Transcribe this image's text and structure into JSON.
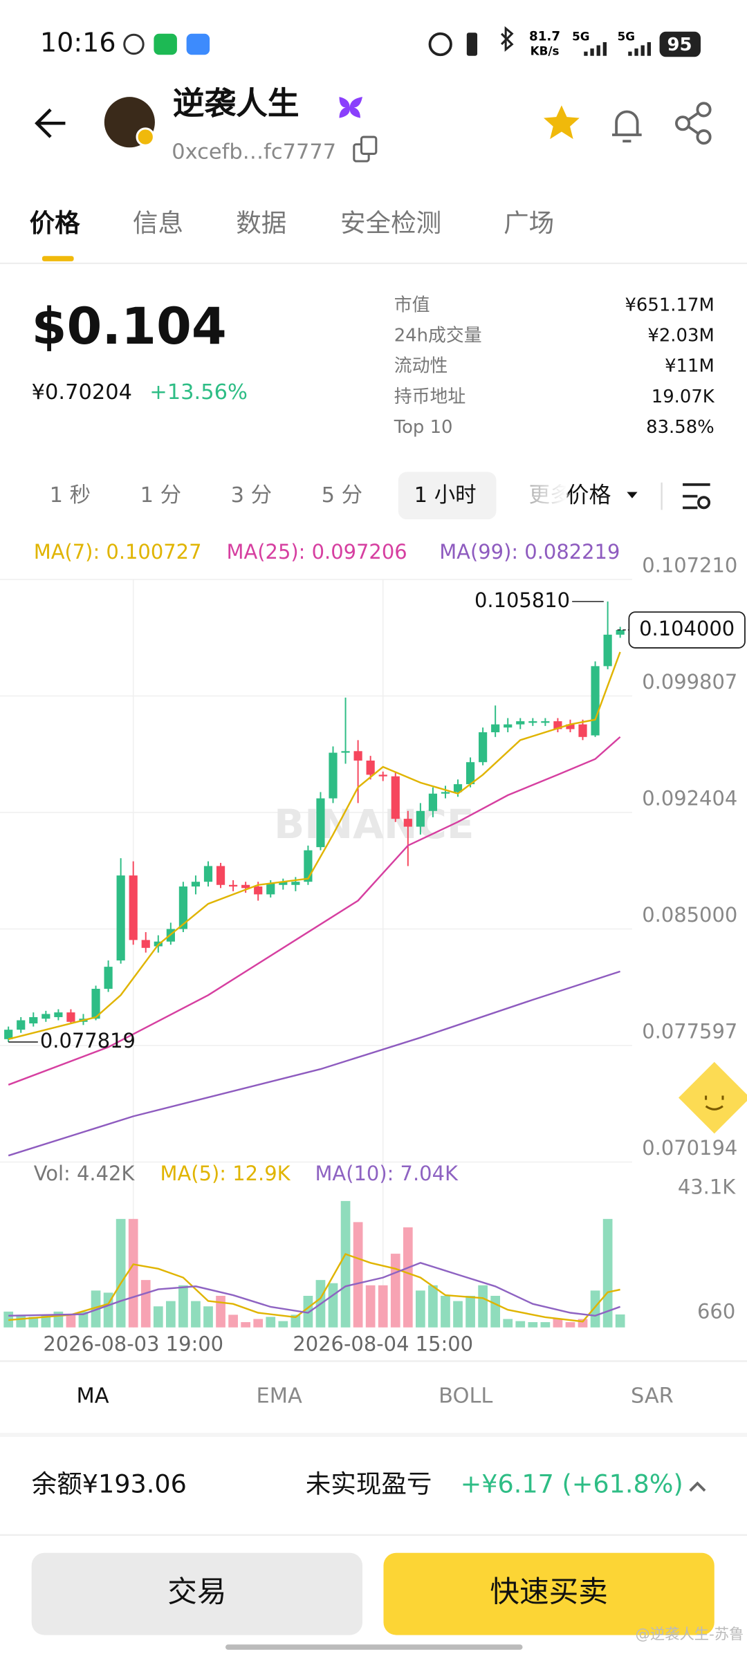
{
  "status_bar": {
    "time": "10:16",
    "net_speed": "81.7",
    "net_unit": "KB/s",
    "net1": "5G",
    "net2": "5G",
    "battery": "95"
  },
  "header": {
    "token_name": "逆袭人生",
    "address": "0xcefb…fc7777"
  },
  "tabs": [
    "价格",
    "信息",
    "数据",
    "安全检测",
    "广场"
  ],
  "price": {
    "main": "$0.104",
    "cny": "¥0.70204",
    "change": "+13.56%"
  },
  "stats": [
    [
      "市值",
      "¥651.17M"
    ],
    [
      "24h成交量",
      "¥2.03M"
    ],
    [
      "流动性",
      "¥11M"
    ],
    [
      "持币地址",
      "19.07K"
    ],
    [
      "Top 10",
      "83.58%"
    ]
  ],
  "intervals": [
    "1 秒",
    "1 分",
    "3 分",
    "5 分",
    "1 小时",
    "更多"
  ],
  "price_select": "价格",
  "chart_data": [
    {
      "type": "candlestick",
      "watermark": "BINANCE",
      "categories": [
        null,
        null,
        null,
        null,
        null,
        null,
        null,
        null,
        null,
        null,
        "2026-08-03 19:00",
        null,
        null,
        null,
        null,
        null,
        null,
        null,
        null,
        null,
        null,
        null,
        null,
        null,
        null,
        null,
        null,
        null,
        null,
        null,
        "2026-08-04 15:00",
        null,
        null,
        null,
        null,
        null,
        null,
        null,
        null,
        null,
        null,
        null,
        null,
        null,
        null,
        null,
        null,
        null,
        null,
        null
      ],
      "open": [
        0.078,
        0.0786,
        0.079,
        0.0793,
        0.0794,
        0.0797,
        0.0791,
        0.0793,
        0.0812,
        0.083,
        0.0884,
        0.0843,
        0.0839,
        0.0842,
        0.085,
        0.0877,
        0.088,
        0.089,
        0.0878,
        0.0878,
        0.0877,
        0.0872,
        0.0878,
        0.0878,
        0.088,
        0.0902,
        0.0933,
        0.0962,
        0.0963,
        0.0957,
        0.0948,
        0.0947,
        0.092,
        0.0915,
        0.0925,
        0.0936,
        0.0937,
        0.0942,
        0.0956,
        0.0975,
        0.0978,
        0.098,
        0.0981,
        0.0981,
        0.0982,
        0.098,
        0.098,
        0.0973,
        0.1017,
        0.1037
      ],
      "high": [
        0.0788,
        0.0794,
        0.0797,
        0.0798,
        0.0799,
        0.0799,
        0.0796,
        0.0814,
        0.083,
        0.0895,
        0.0893,
        0.0848,
        0.0846,
        0.0854,
        0.088,
        0.0884,
        0.0893,
        0.0892,
        0.0881,
        0.088,
        0.088,
        0.0881,
        0.0882,
        0.0883,
        0.0903,
        0.0937,
        0.0966,
        0.0997,
        0.097,
        0.096,
        0.095,
        0.095,
        0.0925,
        0.093,
        0.094,
        0.0941,
        0.0945,
        0.0959,
        0.0978,
        0.0992,
        0.0984,
        0.0984,
        0.0984,
        0.0984,
        0.0984,
        0.0983,
        0.0983,
        0.102,
        0.10581,
        0.1042
      ],
      "low": [
        0.077819,
        0.0784,
        0.0788,
        0.0791,
        0.0792,
        0.079,
        0.0789,
        0.0792,
        0.081,
        0.0828,
        0.084,
        0.0835,
        0.0835,
        0.084,
        0.0848,
        0.0872,
        0.0877,
        0.0876,
        0.0874,
        0.0873,
        0.0868,
        0.087,
        0.0875,
        0.0874,
        0.0878,
        0.09,
        0.093,
        0.0955,
        0.093,
        0.0945,
        0.0944,
        0.0918,
        0.089,
        0.091,
        0.0921,
        0.0933,
        0.0934,
        0.094,
        0.0954,
        0.0972,
        0.0975,
        0.0977,
        0.0979,
        0.0979,
        0.0975,
        0.0975,
        0.097,
        0.0972,
        0.1015,
        0.1035
      ],
      "close": [
        0.0786,
        0.0792,
        0.0794,
        0.0796,
        0.0797,
        0.0791,
        0.0793,
        0.0812,
        0.0826,
        0.0884,
        0.0843,
        0.0838,
        0.0842,
        0.085,
        0.0877,
        0.088,
        0.089,
        0.0878,
        0.0877,
        0.0876,
        0.0872,
        0.0879,
        0.088,
        0.088,
        0.09,
        0.0933,
        0.0962,
        0.0963,
        0.0957,
        0.0948,
        0.0947,
        0.092,
        0.0915,
        0.0925,
        0.0936,
        0.0937,
        0.0942,
        0.0956,
        0.0975,
        0.098,
        0.098,
        0.0982,
        0.0982,
        0.0982,
        0.0977,
        0.0977,
        0.0972,
        0.1017,
        0.1037,
        0.104
      ],
      "up_color": "#2ebd85",
      "down_color": "#f6465d",
      "series": [
        {
          "name": "MA(7): 0.100727",
          "color": "#e0b400",
          "x": [
            0,
            7,
            9,
            12,
            16,
            20,
            24,
            26,
            28,
            30,
            33,
            36,
            38,
            41,
            45,
            47,
            49
          ],
          "values": [
            0.078,
            0.0794,
            0.0808,
            0.084,
            0.0866,
            0.0878,
            0.0882,
            0.091,
            0.094,
            0.0953,
            0.0943,
            0.0936,
            0.0948,
            0.097,
            0.098,
            0.0983,
            0.1026
          ]
        },
        {
          "name": "MA(25): 0.097206",
          "color": "#d63fa0",
          "x": [
            0,
            8,
            16,
            24,
            28,
            32,
            36,
            40,
            44,
            47,
            49
          ],
          "values": [
            0.0751,
            0.0775,
            0.0808,
            0.0848,
            0.0868,
            0.0903,
            0.0918,
            0.0935,
            0.0948,
            0.0958,
            0.0972
          ]
        },
        {
          "name": "MA(99): 0.082219",
          "color": "#8e5bbf",
          "x": [
            0,
            10,
            25,
            33,
            42,
            49
          ],
          "values": [
            0.0706,
            0.0731,
            0.0761,
            0.0781,
            0.0805,
            0.0823
          ]
        }
      ],
      "high_label": {
        "value": 0.10581,
        "label": "0.105810"
      },
      "low_label": {
        "value": 0.077819,
        "label": "0.077819"
      },
      "last_price": {
        "value": 0.104,
        "label": "0.104000"
      },
      "ylim": [
        0.070194,
        0.10721
      ],
      "yticks": [
        0.070194,
        0.077597,
        {
          "value": 0.085,
          "label": "0.085000"
        },
        0.092404,
        0.099807,
        {
          "value": 0.10721,
          "label": "0.107210"
        }
      ],
      "grid": true
    },
    {
      "type": "bar",
      "legend": "Vol: 4.42K",
      "values": [
        5390,
        4310,
        3590,
        4310,
        5390,
        4310,
        5390,
        12570,
        11850,
        36980,
        36980,
        16160,
        7180,
        8980,
        14360,
        8980,
        7180,
        10770,
        4310,
        1800,
        2870,
        3590,
        2150,
        4310,
        10770,
        16160,
        15080,
        43100,
        35900,
        14360,
        14360,
        25130,
        34110,
        12570,
        14360,
        10770,
        8980,
        10770,
        14360,
        10770,
        2870,
        2150,
        1800,
        1800,
        2870,
        1800,
        2870,
        12570,
        36980,
        4420
      ],
      "up_color": "#8fdcbc",
      "down_color": "#f7a3b3",
      "series": [
        {
          "name": "MA(5): 12.9K",
          "color": "#e0b400",
          "x": [
            0,
            5,
            8,
            9,
            10,
            12,
            14,
            16,
            18,
            20,
            23,
            25,
            27,
            29,
            31,
            33,
            35,
            38,
            40,
            43,
            46,
            48,
            49
          ],
          "values": [
            2500,
            4300,
            8000,
            15000,
            21500,
            20000,
            17000,
            9000,
            8000,
            5000,
            3500,
            10000,
            25000,
            22000,
            20000,
            17000,
            11000,
            10000,
            6000,
            3500,
            2000,
            12000,
            12900
          ]
        },
        {
          "name": "MA(10): 7.04K",
          "color": "#8e63c2",
          "x": [
            0,
            6,
            9,
            12,
            15,
            18,
            21,
            24,
            27,
            30,
            33,
            36,
            39,
            42,
            45,
            47,
            49
          ],
          "values": [
            4000,
            4500,
            9000,
            13000,
            14000,
            11000,
            7000,
            5000,
            14000,
            17000,
            22000,
            18000,
            14000,
            8000,
            5000,
            4000,
            7040
          ]
        }
      ],
      "ylim": [
        0,
        43100
      ],
      "yticks": [
        660,
        {
          "value": 43100,
          "label": "43.1K"
        }
      ]
    }
  ],
  "indicators": [
    "MA",
    "EMA",
    "BOLL",
    "SAR"
  ],
  "footer": {
    "balance": "余额¥193.06",
    "pnl_label": "未实现盈亏",
    "pnl_value": "+¥6.17 (+61.8%)",
    "trade": "交易",
    "quick": "快速买卖",
    "watermark": "@逆袭人生-苏鲁"
  }
}
